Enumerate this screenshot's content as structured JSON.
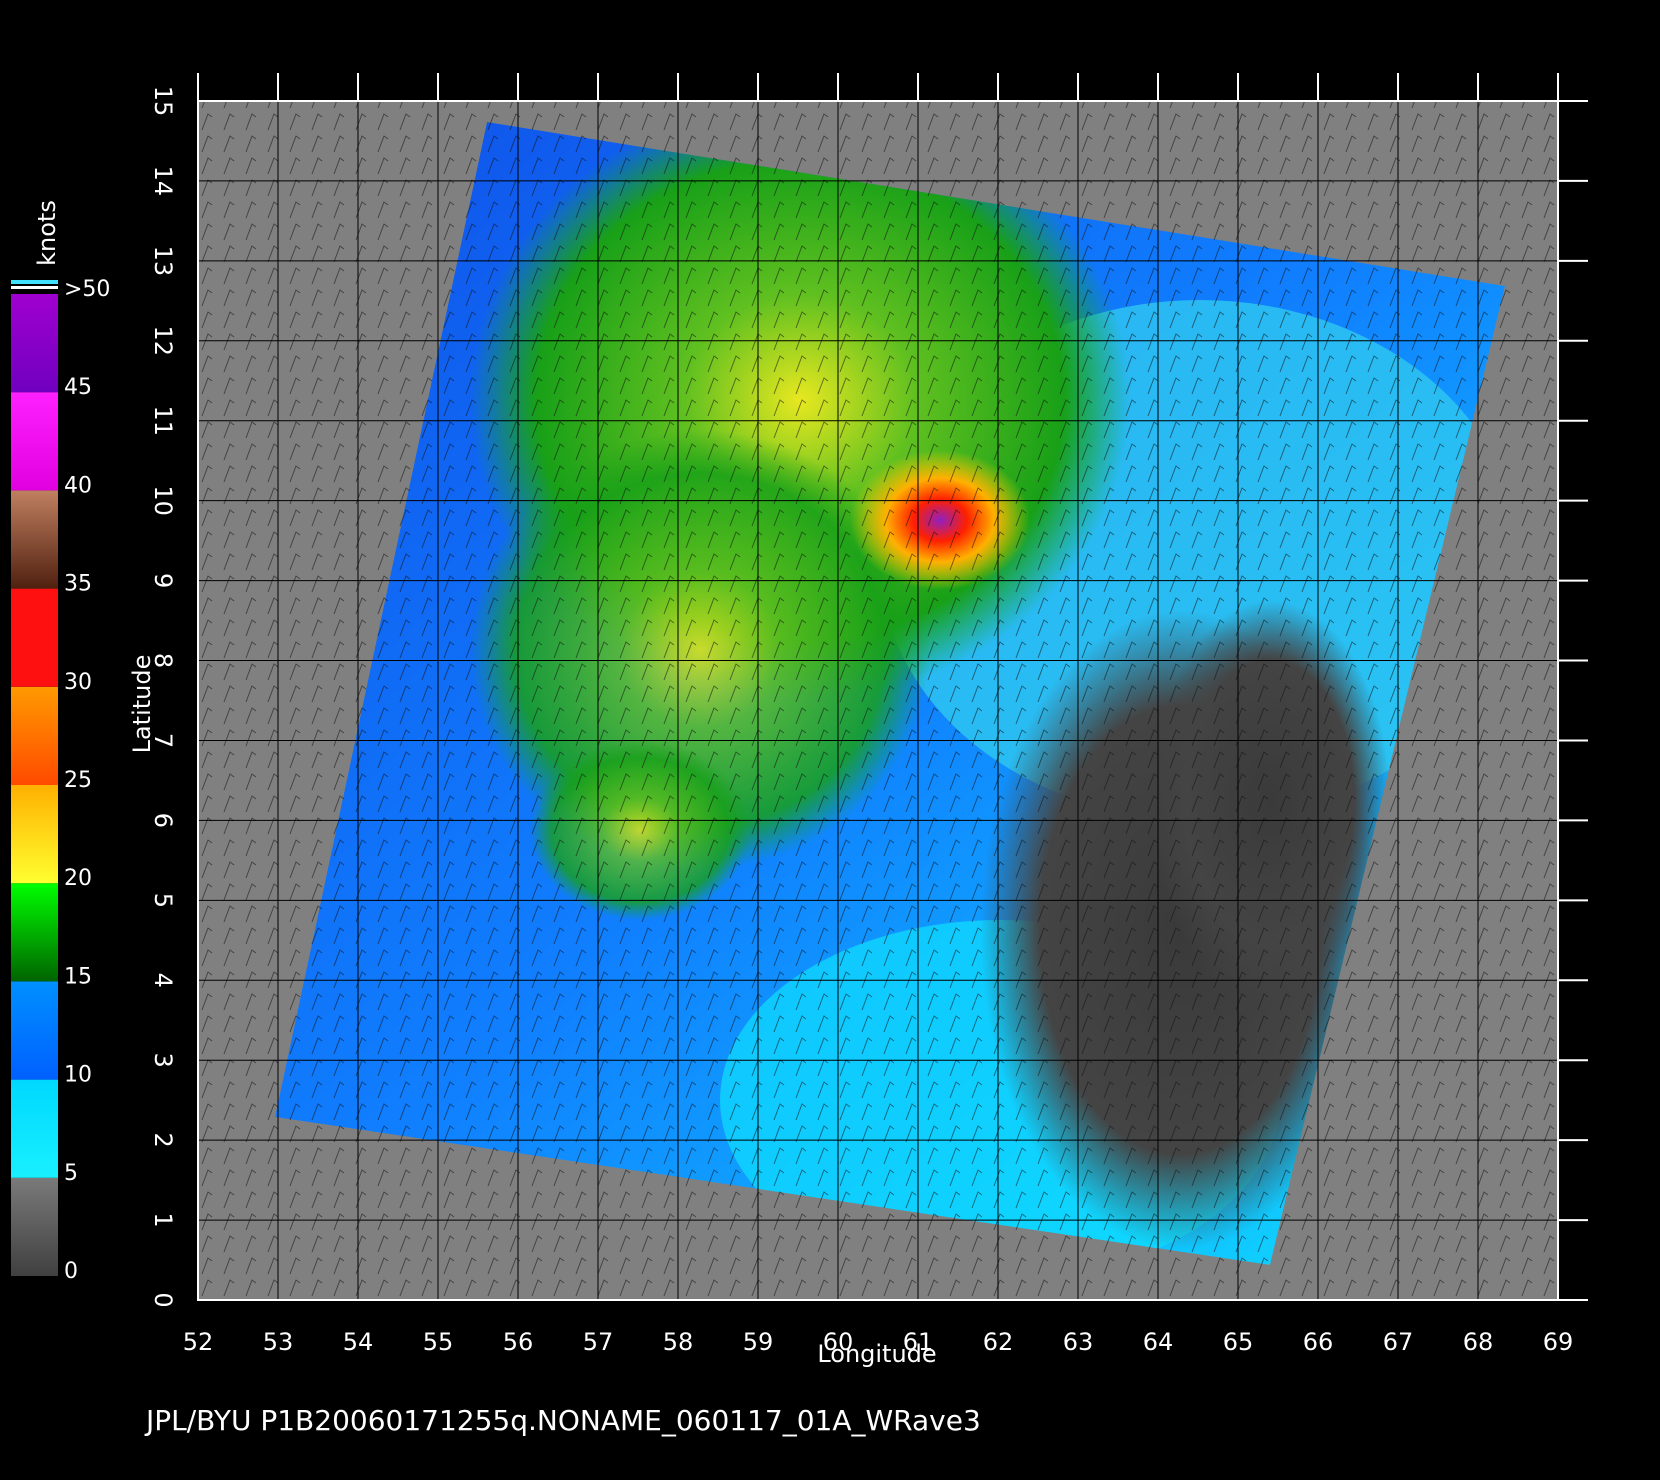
{
  "map": {
    "x_label": "Longitude",
    "y_label": "Latitude",
    "xlim": [
      52,
      69
    ],
    "ylim": [
      0,
      15
    ],
    "xticks": [
      52,
      53,
      54,
      55,
      56,
      57,
      58,
      59,
      60,
      61,
      62,
      63,
      64,
      65,
      66,
      67,
      68,
      69
    ],
    "yticks": [
      0,
      1,
      2,
      3,
      4,
      5,
      6,
      7,
      8,
      9,
      10,
      11,
      12,
      13,
      14,
      15
    ]
  },
  "colorbar": {
    "title": "knots",
    "ticks": [
      0,
      5,
      10,
      15,
      20,
      25,
      30,
      35,
      40,
      45,
      {
        "value": 50,
        "label": ">50"
      }
    ],
    "colors": [
      [
        "#404040",
        "#7a7a7a"
      ],
      [
        "#18f0ff",
        "#00d8ff"
      ],
      [
        "#0060ff",
        "#0090ff"
      ],
      [
        "#006400",
        "#00ff00"
      ],
      [
        "#ffff30",
        "#ffb000"
      ],
      [
        "#ff4a00",
        "#ff9a00"
      ],
      [
        "#ff1010",
        "#ff1010"
      ],
      [
        "#502010",
        "#c08060"
      ],
      [
        "#e000e0",
        "#ff20ff"
      ],
      [
        "#7000c0",
        "#a000d0"
      ]
    ]
  },
  "footer": "JPL/BYU  P1B20060171255q.NONAME_060117_01A_WRave3"
}
